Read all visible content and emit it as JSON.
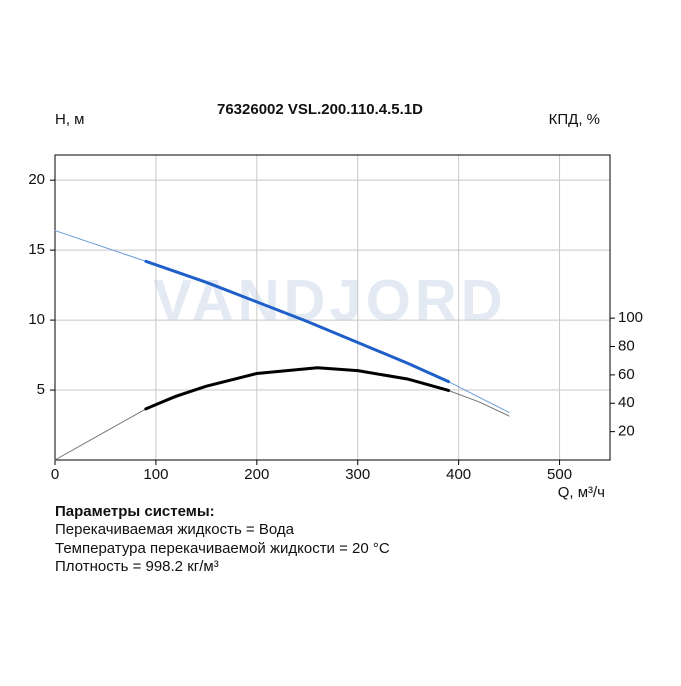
{
  "chart_data": {
    "type": "line",
    "title": "76326002 VSL.200.110.4.5.1D",
    "y_label": "H, м",
    "y2_label": "КПД, %",
    "x_label": "Q, м³/ч",
    "watermark": "VANDJORD",
    "xlim": [
      0,
      550
    ],
    "xticks": [
      0,
      100,
      200,
      300,
      400,
      500
    ],
    "ylim": [
      0,
      21.8
    ],
    "yticks": [
      5,
      10,
      15,
      20
    ],
    "y2lim": [
      0,
      215
    ],
    "y2ticks": [
      20,
      40,
      60,
      80,
      100
    ],
    "grid": true,
    "series": [
      {
        "color": "#6a9ad8",
        "width": 1,
        "x": [
          0,
          90,
          200,
          300,
          390,
          450
        ],
        "values": [
          16.4,
          14.2,
          11.3,
          8.4,
          5.6,
          3.4
        ]
      },
      {
        "color": "#1f5fc8",
        "width": 3,
        "x": [
          90,
          150,
          200,
          250,
          300,
          350,
          390
        ],
        "values": [
          14.2,
          12.7,
          11.3,
          9.9,
          8.4,
          6.9,
          5.6
        ]
      },
      {
        "color": "#777777",
        "width": 1,
        "axis": "y2",
        "x": [
          0,
          30,
          60,
          90,
          150,
          200,
          260,
          300,
          350,
          390,
          420,
          450
        ],
        "values": [
          0,
          12,
          24,
          36,
          52,
          61,
          65,
          63,
          57,
          49,
          41,
          31
        ]
      },
      {
        "color": "#000000",
        "width": 3,
        "axis": "y2",
        "x": [
          90,
          120,
          150,
          200,
          260,
          300,
          350,
          390
        ],
        "values": [
          36,
          45,
          52,
          61,
          65,
          63,
          57,
          49
        ]
      }
    ]
  },
  "parameters": {
    "title": "Параметры системы:",
    "lines": [
      "Перекачиваемая жидкость = Вода",
      "Температура перекачиваемой жидкости = 20 °C",
      "Плотность = 998.2 кг/м³"
    ]
  }
}
